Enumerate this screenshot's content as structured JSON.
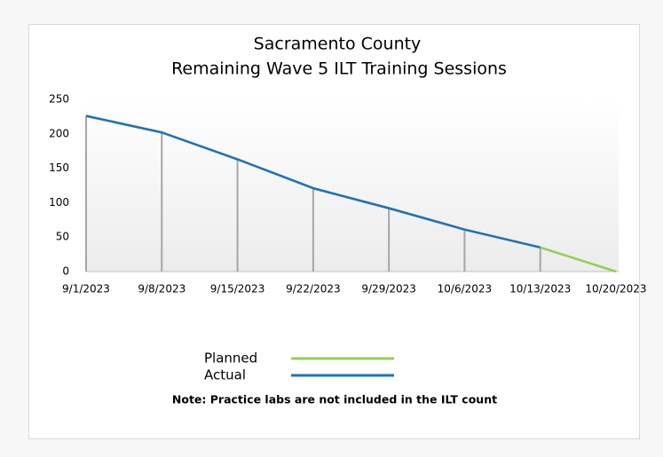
{
  "chart_data": {
    "type": "line",
    "title": "Sacramento County",
    "subtitle": "Remaining Wave 5 ILT Training Sessions",
    "categories": [
      "9/1/2023",
      "9/8/2023",
      "9/15/2023",
      "9/22/2023",
      "9/29/2023",
      "10/6/2023",
      "10/13/2023",
      "10/20/2023"
    ],
    "series": [
      {
        "name": "Planned",
        "color": "#92d050",
        "values": [
          226,
          202,
          163,
          121,
          92,
          61,
          35,
          0
        ]
      },
      {
        "name": "Actual",
        "color": "#1f70c1",
        "values": [
          226,
          202,
          163,
          121,
          92,
          61,
          35,
          null
        ]
      }
    ],
    "ylim": [
      0,
      250
    ],
    "yticks": [
      0,
      50,
      100,
      150,
      200,
      250
    ],
    "drop_lines": true,
    "note": "Note: Practice labs are not included in the ILT count"
  }
}
